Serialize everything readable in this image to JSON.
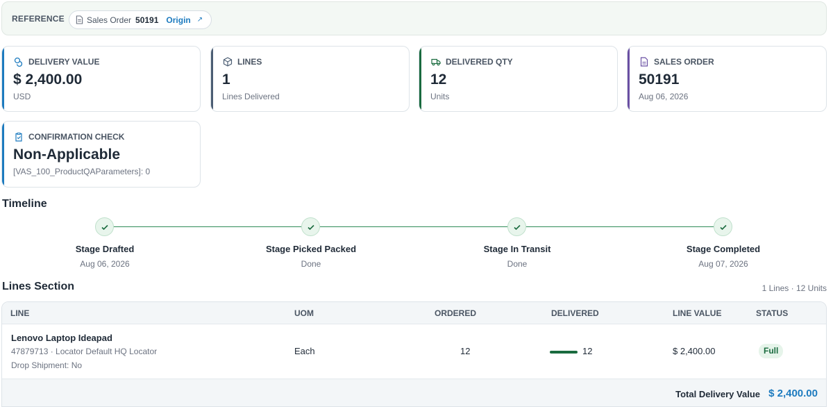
{
  "reference": {
    "label": "REFERENCE",
    "doc_type": "Sales Order",
    "doc_number": "50191",
    "origin_link": "Origin",
    "origin_icon": "external-arrow-icon"
  },
  "cards": [
    {
      "title": "DELIVERY VALUE",
      "value": "$ 2,400.00",
      "sub": "USD",
      "icon": "coins-icon",
      "accent": "#1d7bbf"
    },
    {
      "title": "LINES",
      "value": "1",
      "sub": "Lines Delivered",
      "icon": "box-icon",
      "accent": "#4b5d73"
    },
    {
      "title": "DELIVERED QTY",
      "value": "12",
      "sub": "Units",
      "icon": "truck-icon",
      "accent": "#1a6b3f"
    },
    {
      "title": "SALES ORDER",
      "value": "50191",
      "sub": "Aug 06, 2026",
      "icon": "document-icon",
      "accent": "#6a4fa3"
    },
    {
      "title": "CONFIRMATION CHECK",
      "value": "Non-Applicable",
      "sub": "[VAS_100_ProductQAParameters]: 0",
      "icon": "clipboard-check-icon",
      "accent": "#1d7bbf"
    }
  ],
  "timeline": {
    "title": "Timeline",
    "stages": [
      {
        "title": "Stage Drafted",
        "sub": "Aug 06, 2026",
        "status": "done"
      },
      {
        "title": "Stage Picked Packed",
        "sub": "Done",
        "status": "done"
      },
      {
        "title": "Stage In Transit",
        "sub": "Done",
        "status": "done"
      },
      {
        "title": "Stage Completed",
        "sub": "Aug 07, 2026",
        "status": "done"
      }
    ]
  },
  "lines": {
    "title": "Lines Section",
    "summary": "1 Lines · 12 Units",
    "headers": [
      "LINE",
      "UOM",
      "ORDERED",
      "DELIVERED",
      "LINE VALUE",
      "STATUS"
    ],
    "rows": [
      {
        "name": "Lenovo Laptop Ideapad",
        "detail": "47879713 · Locator Default HQ Locator",
        "drop_shipment": "Drop Shipment: No",
        "uom": "Each",
        "ordered": "12",
        "delivered": "12",
        "delivered_fraction": 1.0,
        "line_value": "$ 2,400.00",
        "status": "Full"
      }
    ],
    "total_label": "Total Delivery Value",
    "total_value": "$ 2,400.00"
  },
  "colors": {
    "accent_blue": "#1d7bbf",
    "success_green": "#1a6b3f"
  }
}
